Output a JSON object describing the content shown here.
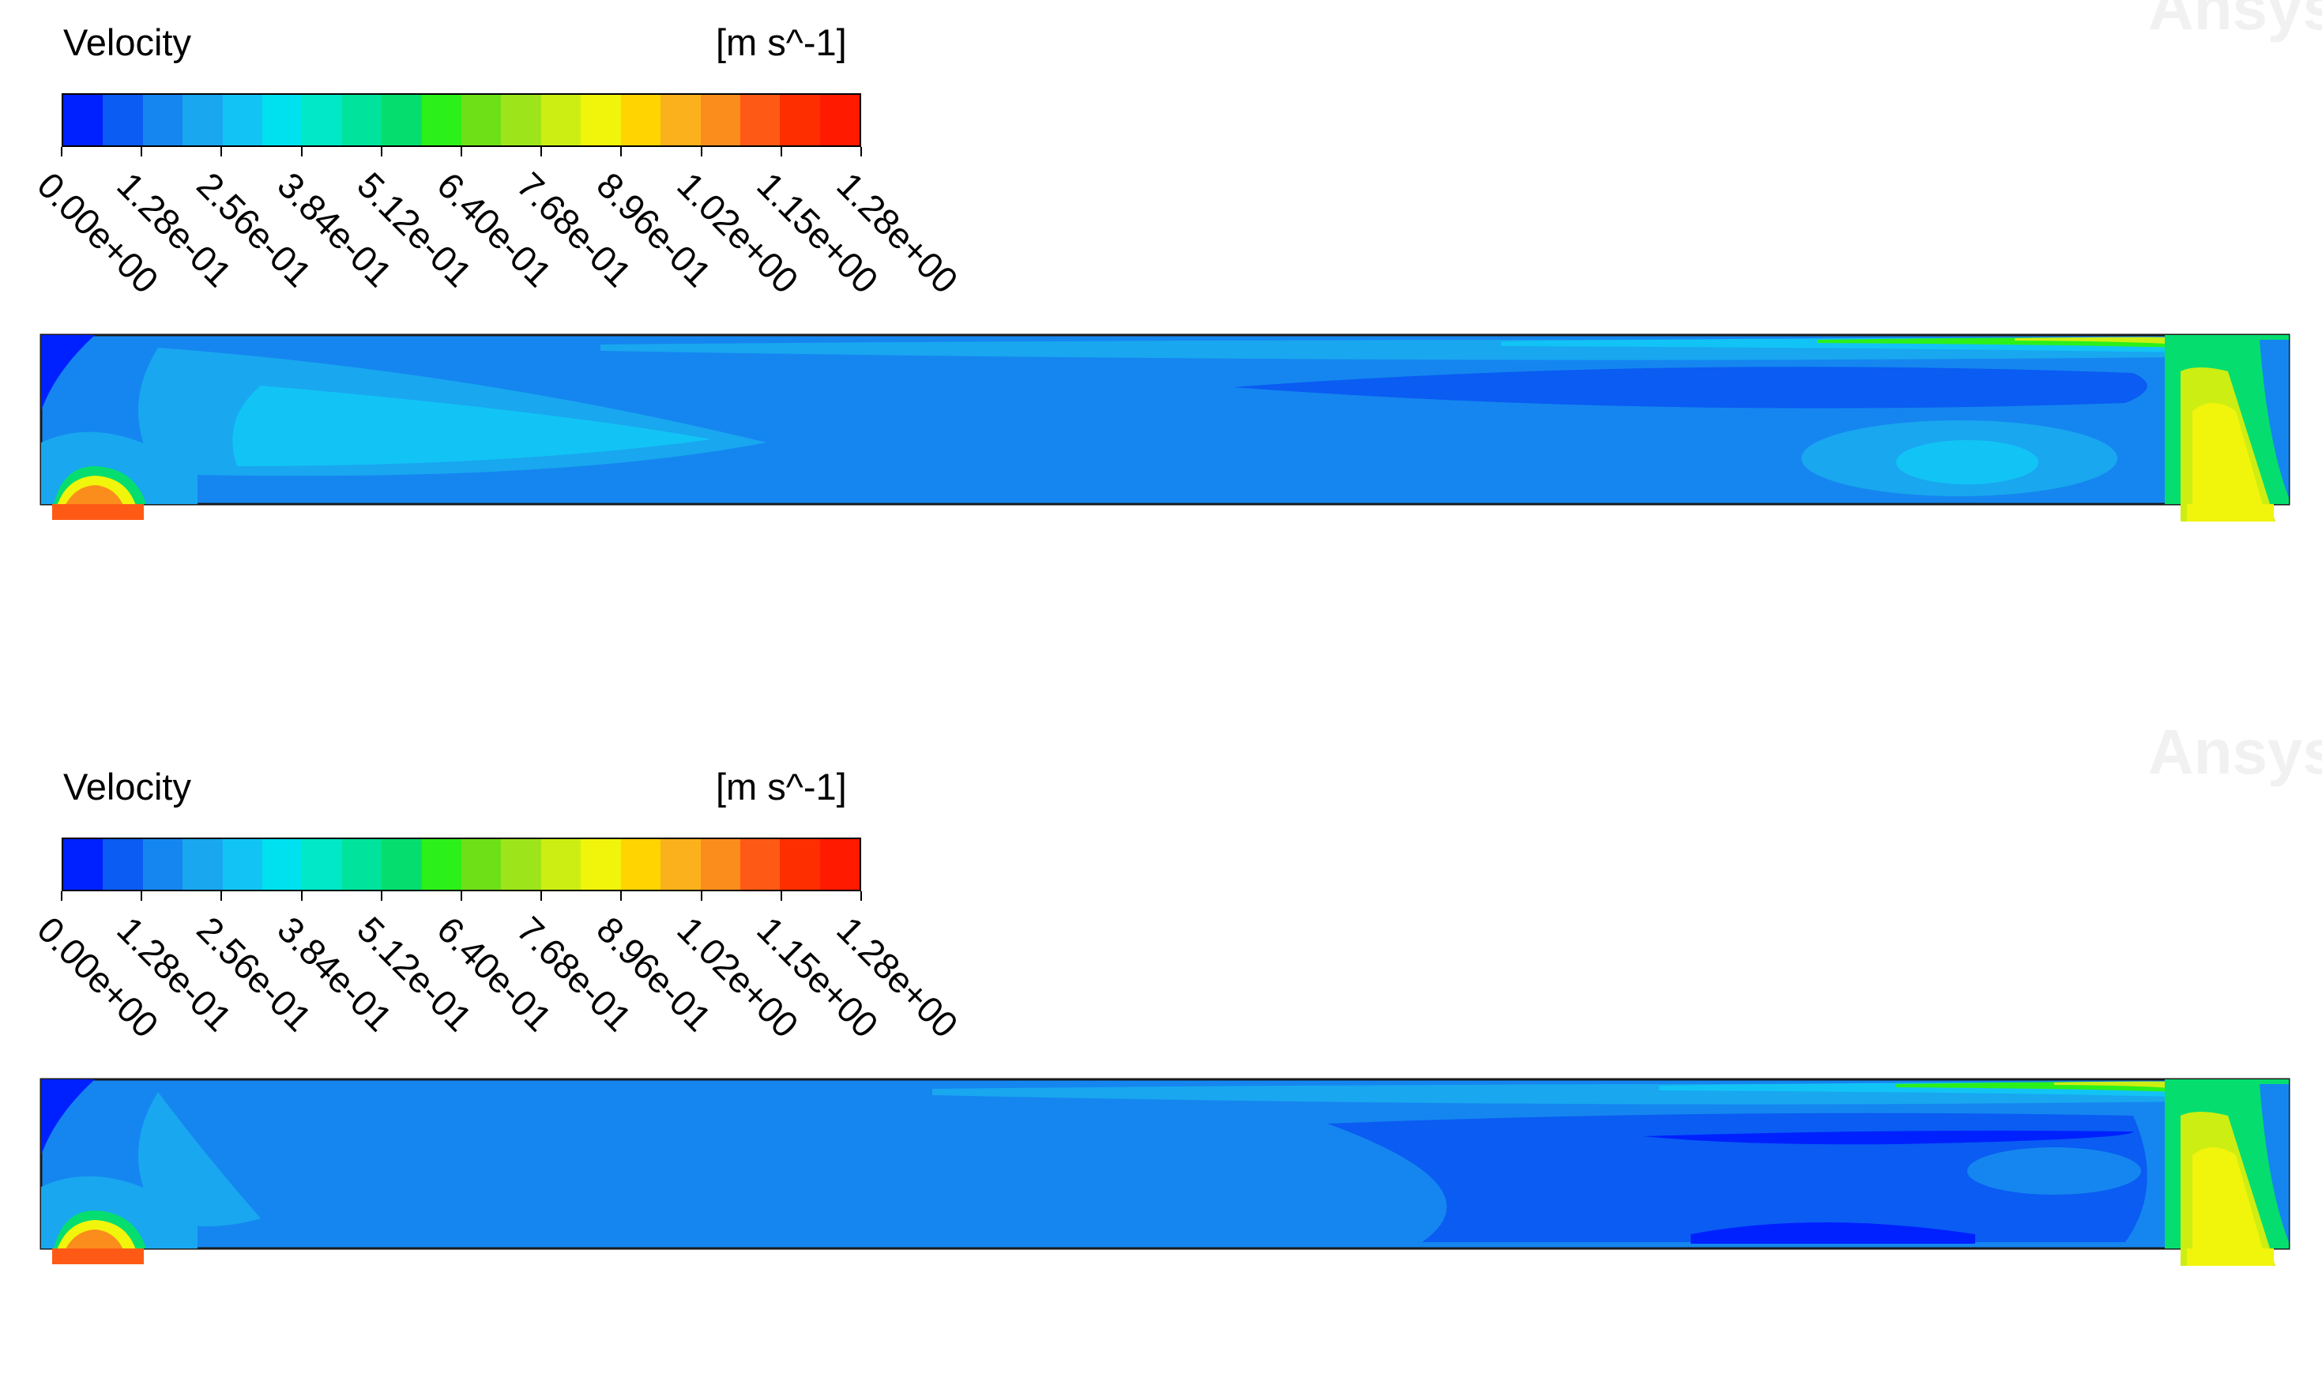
{
  "panels": [
    {
      "legend": {
        "title": "Velocity",
        "unit": "[m s^-1]",
        "tick_labels": [
          "0.00e+00",
          "1.28e-01",
          "2.56e-01",
          "3.84e-01",
          "5.12e-01",
          "6.40e-01",
          "7.68e-01",
          "8.96e-01",
          "1.02e+00",
          "1.15e+00",
          "1.28e+00"
        ]
      },
      "watermark": "Ansys"
    },
    {
      "legend": {
        "title": "Velocity",
        "unit": "[m s^-1]",
        "tick_labels": [
          "0.00e+00",
          "1.28e-01",
          "2.56e-01",
          "3.84e-01",
          "5.12e-01",
          "6.40e-01",
          "7.68e-01",
          "8.96e-01",
          "1.02e+00",
          "1.15e+00",
          "1.28e+00"
        ]
      },
      "watermark": "Ansys"
    }
  ],
  "colormap": [
    "#0021ff",
    "#0a5cf2",
    "#1586f0",
    "#19a7f0",
    "#12c4f5",
    "#00e1f0",
    "#00e8c8",
    "#00e39c",
    "#05de6e",
    "#2cf01a",
    "#6ee018",
    "#9de51a",
    "#cdee12",
    "#f1f40b",
    "#ffd400",
    "#fbb11b",
    "#fb8d1c",
    "#fe5a15",
    "#ff2e00",
    "#ff1a00"
  ]
}
